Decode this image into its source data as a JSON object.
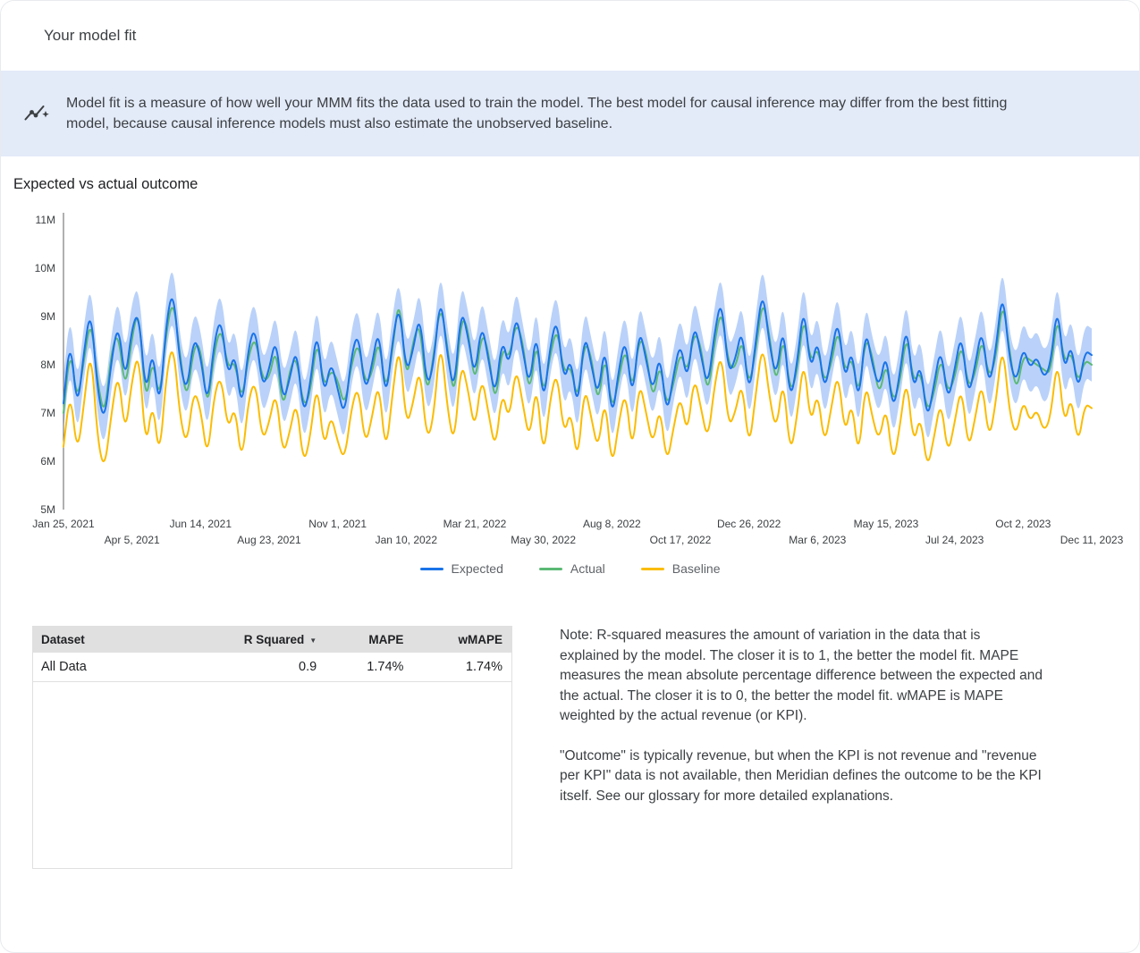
{
  "header": {
    "title": "Your model fit"
  },
  "banner": {
    "icon": "insights-icon",
    "text": "Model fit is a measure of how well your MMM fits the data used to train the model. The best model for causal inference may differ from the best fitting model, because causal inference models must also estimate the unobserved baseline."
  },
  "chart_data": {
    "type": "line",
    "title": "Expected vs actual outcome",
    "xlabel": "",
    "ylabel": "",
    "ylim": [
      5,
      11
    ],
    "y_unit": "M",
    "y_tick_labels": [
      "5M",
      "6M",
      "7M",
      "8M",
      "9M",
      "10M",
      "11M"
    ],
    "x_tick_labels": [
      "Jan 25, 2021",
      "Apr 5, 2021",
      "Jun 14, 2021",
      "Aug 23, 2021",
      "Nov 1, 2021",
      "Jan 10, 2022",
      "Mar 21, 2022",
      "May 30, 2022",
      "Aug 8, 2022",
      "Oct 17, 2022",
      "Dec 26, 2022",
      "Mar 6, 2023",
      "May 15, 2023",
      "Jul 24, 2023",
      "Oct 2, 2023",
      "Dec 11, 2023"
    ],
    "legend_position": "bottom",
    "grid": false,
    "band_half_width": 0.55,
    "band_color": "#a9c7f8",
    "series": [
      {
        "name": "Expected",
        "color": "#1a73e8",
        "values": [
          7.2,
          8.6,
          7.0,
          8.3,
          9.2,
          7.4,
          6.8,
          8.1,
          8.9,
          7.6,
          8.8,
          9.1,
          7.3,
          8.4,
          7.0,
          8.9,
          9.6,
          8.0,
          7.4,
          8.6,
          8.2,
          7.1,
          8.5,
          9.0,
          7.7,
          8.3,
          7.0,
          8.4,
          8.8,
          7.5,
          7.9,
          8.6,
          7.2,
          7.7,
          8.4,
          6.9,
          7.6,
          8.8,
          7.3,
          8.1,
          7.5,
          6.9,
          8.2,
          8.7,
          7.4,
          8.0,
          8.8,
          7.2,
          8.5,
          9.3,
          7.8,
          8.3,
          9.1,
          7.5,
          8.0,
          9.5,
          8.2,
          7.4,
          9.2,
          8.6,
          7.7,
          8.9,
          8.1,
          7.3,
          8.6,
          7.9,
          9.1,
          8.3,
          7.5,
          8.8,
          7.1,
          8.4,
          9.0,
          7.6,
          8.2,
          7.0,
          8.7,
          8.0,
          7.3,
          8.5,
          6.8,
          7.9,
          8.6,
          7.2,
          8.8,
          8.1,
          7.4,
          8.3,
          6.9,
          7.8,
          8.5,
          7.6,
          8.9,
          8.2,
          7.5,
          8.7,
          9.4,
          7.8,
          8.1,
          8.8,
          7.3,
          8.5,
          9.6,
          8.4,
          7.7,
          8.9,
          7.2,
          8.0,
          9.3,
          7.8,
          8.6,
          7.4,
          8.2,
          9.0,
          7.6,
          8.4,
          7.1,
          8.8,
          8.0,
          7.5,
          8.3,
          7.0,
          7.8,
          8.9,
          7.4,
          8.1,
          6.8,
          7.6,
          8.4,
          7.2,
          7.9,
          8.7,
          7.3,
          8.0,
          8.8,
          7.5,
          8.3,
          9.6,
          8.1,
          7.6,
          8.4,
          7.9,
          8.2,
          7.7,
          8.0,
          9.3,
          7.8,
          8.5,
          7.4,
          8.3,
          8.2
        ]
      },
      {
        "name": "Actual",
        "color": "#5bb974",
        "values": [
          7.0,
          8.4,
          7.2,
          8.1,
          9.0,
          7.6,
          6.9,
          8.3,
          8.7,
          7.4,
          8.6,
          9.2,
          7.1,
          8.2,
          7.2,
          8.7,
          9.4,
          8.2,
          7.2,
          8.4,
          8.4,
          7.0,
          8.3,
          8.8,
          7.9,
          8.1,
          7.2,
          8.2,
          8.6,
          7.7,
          7.7,
          8.4,
          7.0,
          7.9,
          8.2,
          7.1,
          7.4,
          8.6,
          7.5,
          7.9,
          7.7,
          7.1,
          8.0,
          8.5,
          7.6,
          7.8,
          8.6,
          7.4,
          8.3,
          9.5,
          7.6,
          8.5,
          8.9,
          7.3,
          8.2,
          9.3,
          8.4,
          7.2,
          9.0,
          8.8,
          7.5,
          8.7,
          8.3,
          7.1,
          8.4,
          8.1,
          8.9,
          8.5,
          7.3,
          8.6,
          7.3,
          8.2,
          8.8,
          7.8,
          8.0,
          7.2,
          8.5,
          8.2,
          7.1,
          8.3,
          7.0,
          7.7,
          8.4,
          7.4,
          8.6,
          8.3,
          7.2,
          8.1,
          7.1,
          7.6,
          8.3,
          7.8,
          8.7,
          8.4,
          7.3,
          8.5,
          9.2,
          8.0,
          7.9,
          8.6,
          7.5,
          8.3,
          9.4,
          8.6,
          7.5,
          8.7,
          7.4,
          7.8,
          9.1,
          8.0,
          8.4,
          7.6,
          8.0,
          8.8,
          7.8,
          8.2,
          7.3,
          8.6,
          8.2,
          7.3,
          8.1,
          7.2,
          7.6,
          8.7,
          7.6,
          7.9,
          7.0,
          7.4,
          8.2,
          7.4,
          7.7,
          8.5,
          7.5,
          7.8,
          8.6,
          7.7,
          8.1,
          9.4,
          8.3,
          7.4,
          8.2,
          8.1,
          8.0,
          7.9,
          7.8,
          9.1,
          8.0,
          8.3,
          7.6,
          8.1,
          8.0
        ]
      },
      {
        "name": "Baseline",
        "color": "#fbbc04",
        "values": [
          6.3,
          7.5,
          6.1,
          7.2,
          8.4,
          6.4,
          5.8,
          7.0,
          7.9,
          6.5,
          7.7,
          8.3,
          6.2,
          7.3,
          6.0,
          7.8,
          8.5,
          6.9,
          6.3,
          7.5,
          7.1,
          6.0,
          7.4,
          7.8,
          6.6,
          7.2,
          5.9,
          7.3,
          7.7,
          6.4,
          6.8,
          7.5,
          6.1,
          6.6,
          7.3,
          5.9,
          6.5,
          7.7,
          6.2,
          7.0,
          6.4,
          6.0,
          7.1,
          7.6,
          6.3,
          6.9,
          7.7,
          6.1,
          7.4,
          8.5,
          6.7,
          7.2,
          8.0,
          6.4,
          6.9,
          8.6,
          7.1,
          6.3,
          8.1,
          7.5,
          6.6,
          7.8,
          7.0,
          6.2,
          7.5,
          6.8,
          8.0,
          7.2,
          6.4,
          7.7,
          6.0,
          7.3,
          7.9,
          6.5,
          7.1,
          5.9,
          7.6,
          6.9,
          6.2,
          7.4,
          5.8,
          6.8,
          7.5,
          6.1,
          7.7,
          7.0,
          6.3,
          7.2,
          5.9,
          6.7,
          7.4,
          6.5,
          7.8,
          7.1,
          6.4,
          7.6,
          8.3,
          6.7,
          7.0,
          7.7,
          6.2,
          7.4,
          8.5,
          7.3,
          6.6,
          7.8,
          6.1,
          6.9,
          8.2,
          6.7,
          7.5,
          6.3,
          7.1,
          7.9,
          6.5,
          7.3,
          6.0,
          7.7,
          6.9,
          6.4,
          7.2,
          5.9,
          6.7,
          7.8,
          6.3,
          7.0,
          5.8,
          6.5,
          7.3,
          6.1,
          6.8,
          7.6,
          6.2,
          6.9,
          7.7,
          6.4,
          7.2,
          8.5,
          7.0,
          6.5,
          7.3,
          6.8,
          7.1,
          6.6,
          6.9,
          8.2,
          6.7,
          7.4,
          6.3,
          7.2,
          7.1
        ]
      }
    ]
  },
  "table": {
    "columns": [
      "Dataset",
      "R Squared",
      "MAPE",
      "wMAPE"
    ],
    "sort_icon": "▼",
    "sorted_column": "R Squared",
    "rows": [
      {
        "dataset": "All Data",
        "r_squared": "0.9",
        "mape": "1.74%",
        "wmape": "1.74%"
      }
    ]
  },
  "note": {
    "paragraph1": "Note: R-squared measures the amount of variation in the data that is explained by the model. The closer it is to 1, the better the model fit. MAPE measures the mean absolute percentage difference between the expected and the actual. The closer it is to 0, the better the model fit. wMAPE is MAPE weighted by the actual revenue (or KPI).",
    "paragraph2": "\"Outcome\" is typically revenue, but when the KPI is not revenue and \"revenue per KPI\" data is not available, then Meridian defines the outcome to be the KPI itself. See our glossary for more detailed explanations."
  }
}
